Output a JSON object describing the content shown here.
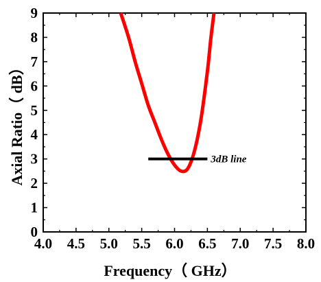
{
  "chart_data": {
    "type": "line",
    "xlabel": "Frequency（ GHz）",
    "ylabel": "Axial Ratio（ dB）",
    "xlim": [
      4.0,
      8.0
    ],
    "ylim": [
      0,
      9
    ],
    "x_ticks": [
      "4.0",
      "4.5",
      "5.0",
      "5.5",
      "6.0",
      "6.5",
      "7.0",
      "7.5",
      "8.0"
    ],
    "y_ticks": [
      "0",
      "1",
      "2",
      "3",
      "4",
      "5",
      "6",
      "7",
      "8",
      "9"
    ],
    "series": [
      {
        "color": "#ff0000",
        "x": [
          5.18,
          5.3,
          5.4,
          5.5,
          5.6,
          5.7,
          5.8,
          5.9,
          6.0,
          6.1,
          6.2,
          6.3,
          6.4,
          6.5,
          6.55,
          6.6
        ],
        "y": [
          9.0,
          8.0,
          7.0,
          6.1,
          5.2,
          4.5,
          3.8,
          3.2,
          2.75,
          2.5,
          2.6,
          3.3,
          4.6,
          6.6,
          7.9,
          9.0
        ]
      }
    ],
    "reference_line": {
      "y": 3,
      "x_start": 5.6,
      "x_end": 6.5,
      "color": "#000000",
      "label": "3dB line"
    },
    "grid": false,
    "legend": "none"
  }
}
